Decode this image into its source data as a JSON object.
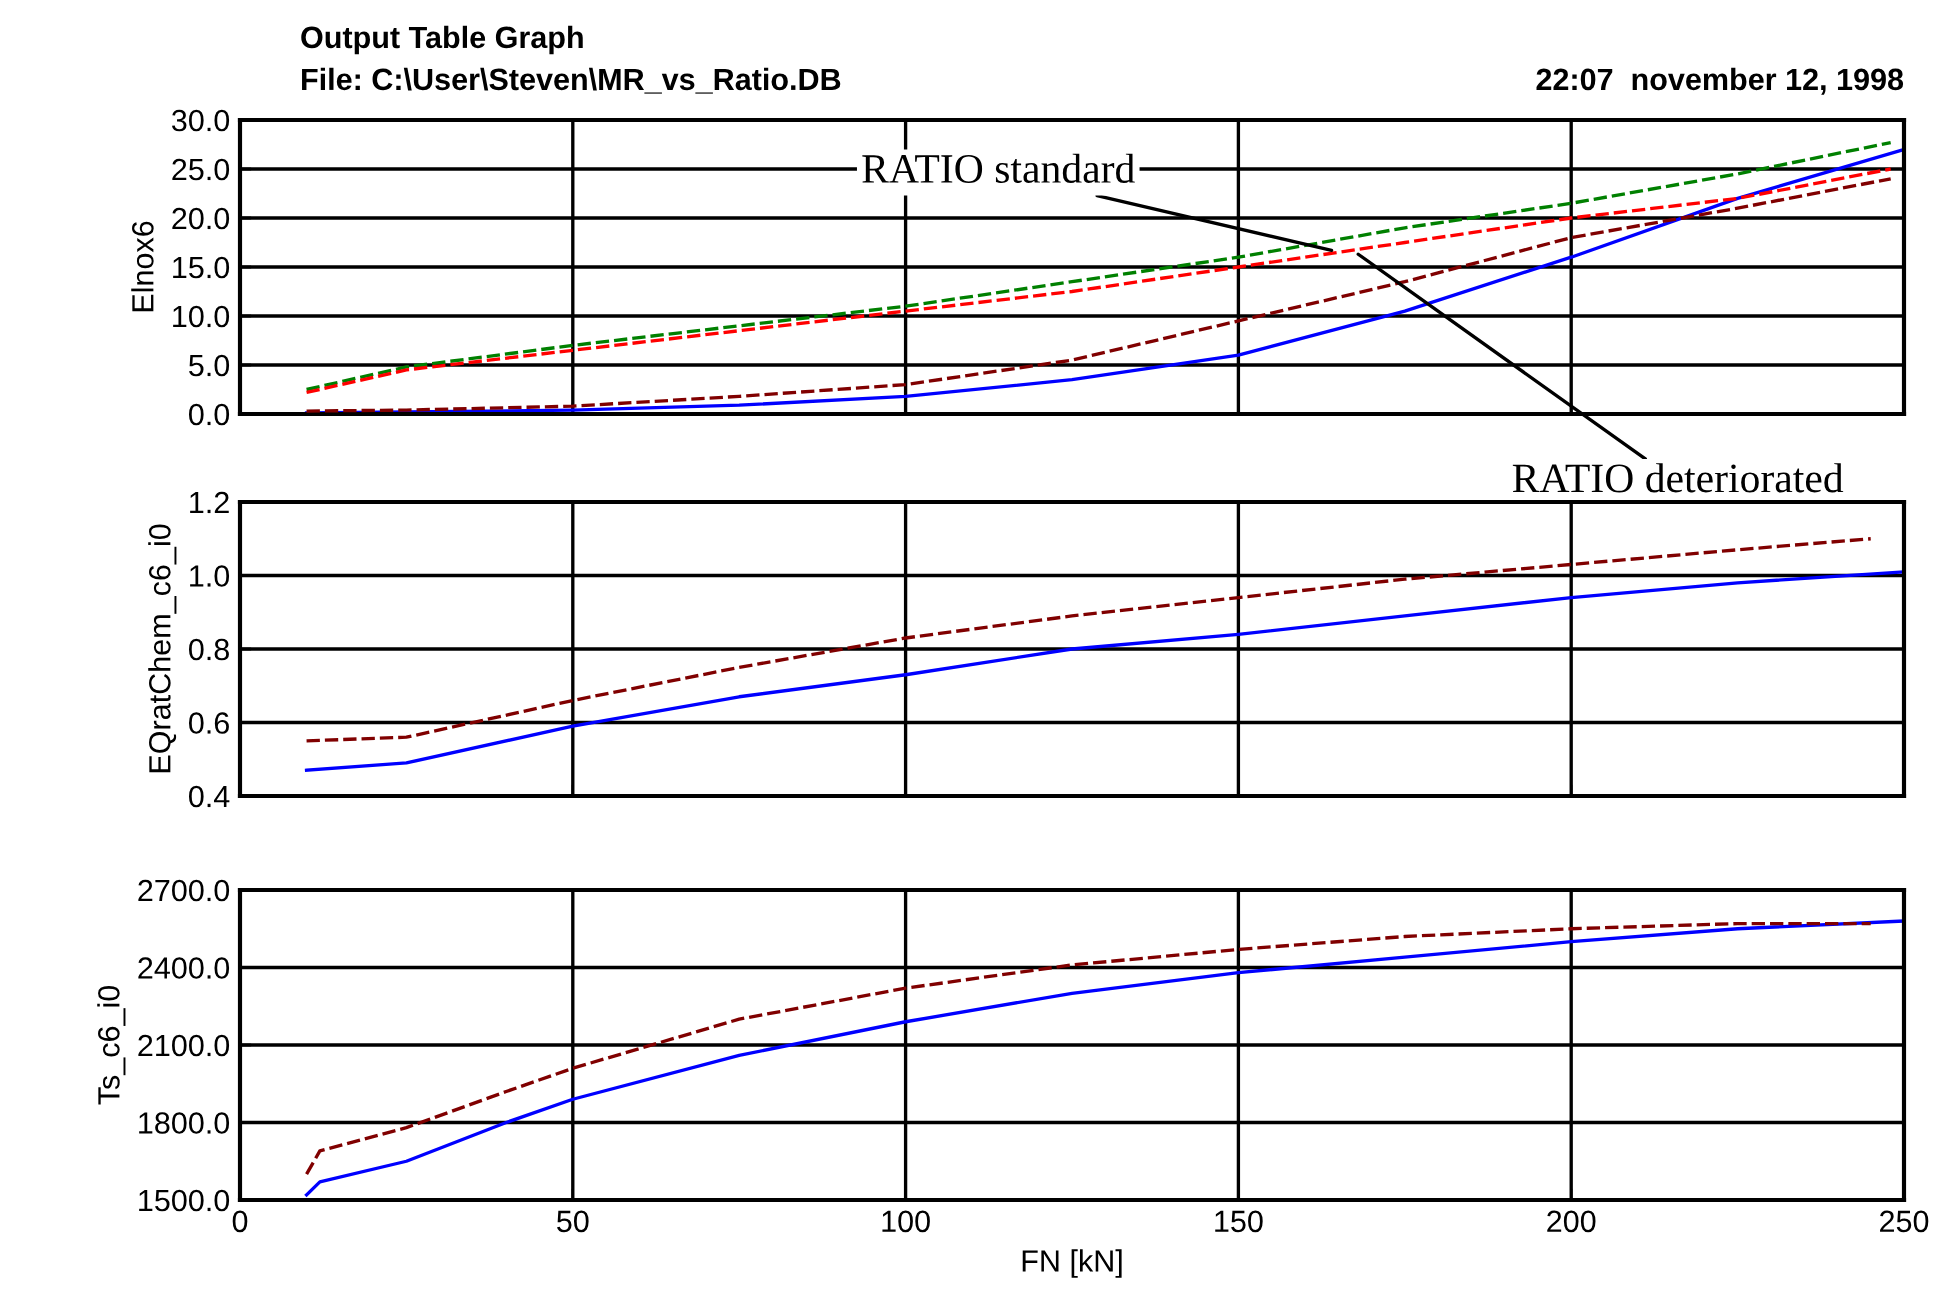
{
  "chart_data": [
    {
      "type": "line",
      "title": "Output Table Graph",
      "subtitle": "File: C:\\User\\Steven\\MR_vs_Ratio.DB",
      "ylabel": "Elnox6",
      "annotations": [
        "22:07  november 12, 1998",
        {
          "text": "RATIO standard",
          "x": 164,
          "y": 16.7
        },
        {
          "text": "RATIO deteriorated",
          "x": 168,
          "y": 16.3
        }
      ],
      "x": [
        10,
        25,
        50,
        75,
        100,
        125,
        150,
        175,
        200,
        225,
        248
      ],
      "series": [
        {
          "color": "#008000",
          "line_style": "dashed",
          "values": [
            2.5,
            4.8,
            7,
            9,
            11,
            13.5,
            16,
            19,
            21.5,
            24.5,
            27.7
          ]
        },
        {
          "color": "#ff0000",
          "line_style": "dashed",
          "values": [
            2.2,
            4.5,
            6.5,
            8.5,
            10.5,
            12.5,
            15,
            17.5,
            20,
            22,
            25
          ]
        },
        {
          "color": "#800000",
          "line_style": "dashed",
          "values": [
            0.3,
            0.4,
            0.8,
            1.8,
            3,
            5.5,
            9.5,
            13.5,
            18,
            21,
            24
          ]
        },
        {
          "color": "#0000ff",
          "line_style": "solid",
          "x": [
            10,
            25,
            50,
            75,
            100,
            125,
            150,
            175,
            200,
            225,
            250
          ],
          "values": [
            0.1,
            0.2,
            0.4,
            0.9,
            1.8,
            3.5,
            6,
            10.5,
            16,
            22,
            27
          ]
        }
      ],
      "xlim": [
        0,
        250
      ],
      "xticks": [
        0,
        50,
        100,
        150,
        200,
        250
      ],
      "ylim": [
        0,
        30
      ],
      "yticks": [
        {
          "value": 0,
          "label": "0.0"
        },
        {
          "value": 5,
          "label": "5.0"
        },
        {
          "value": 10,
          "label": "10.0"
        },
        {
          "value": 15,
          "label": "15.0"
        },
        {
          "value": 20,
          "label": "20.0"
        },
        {
          "value": 25,
          "label": "25.0"
        },
        {
          "value": 30,
          "label": "30.0"
        }
      ],
      "grid": true,
      "tick_labels": "y",
      "marker": "none"
    },
    {
      "type": "line",
      "ylabel": "EQratChem_c6_i0",
      "x": [
        10,
        25,
        50,
        75,
        100,
        125,
        150,
        175,
        200,
        225,
        245
      ],
      "series": [
        {
          "color": "#800000",
          "line_style": "dashed",
          "values": [
            0.55,
            0.56,
            0.66,
            0.75,
            0.83,
            0.89,
            0.94,
            0.99,
            1.03,
            1.07,
            1.1
          ]
        },
        {
          "color": "#0000ff",
          "line_style": "solid",
          "x": [
            10,
            25,
            50,
            75,
            100,
            125,
            150,
            175,
            200,
            225,
            250
          ],
          "values": [
            0.47,
            0.49,
            0.59,
            0.67,
            0.73,
            0.8,
            0.84,
            0.89,
            0.94,
            0.98,
            1.01
          ]
        }
      ],
      "xlim": [
        0,
        250
      ],
      "xticks": [
        0,
        50,
        100,
        150,
        200,
        250
      ],
      "ylim": [
        0.4,
        1.2
      ],
      "yticks": [
        {
          "value": 0.4,
          "label": "0.4"
        },
        {
          "value": 0.6,
          "label": "0.6"
        },
        {
          "value": 0.8,
          "label": "0.8"
        },
        {
          "value": 1.0,
          "label": "1.0"
        },
        {
          "value": 1.2,
          "label": "1.2"
        }
      ],
      "grid": true,
      "tick_labels": "y",
      "marker": "none"
    },
    {
      "type": "line",
      "ylabel": "Ts_c6_i0",
      "xlabel": "FN [kN]",
      "x": [
        10,
        12,
        25,
        40,
        50,
        75,
        100,
        125,
        150,
        175,
        200,
        225,
        245
      ],
      "series": [
        {
          "color": "#800000",
          "line_style": "dashed",
          "values": [
            1600,
            1690,
            1780,
            1920,
            2010,
            2200,
            2320,
            2410,
            2470,
            2520,
            2550,
            2570,
            2570
          ]
        },
        {
          "color": "#0000ff",
          "line_style": "solid",
          "x": [
            10,
            12,
            25,
            40,
            50,
            75,
            100,
            125,
            150,
            175,
            200,
            225,
            250
          ],
          "values": [
            1520,
            1570,
            1650,
            1800,
            1890,
            2060,
            2190,
            2300,
            2380,
            2440,
            2500,
            2550,
            2580
          ]
        }
      ],
      "xlim": [
        0,
        250
      ],
      "xticks": [
        0,
        50,
        100,
        150,
        200,
        250
      ],
      "ylim": [
        1500,
        2700
      ],
      "yticks": [
        {
          "value": 1500,
          "label": "1500.0"
        },
        {
          "value": 1800,
          "label": "1800.0"
        },
        {
          "value": 2100,
          "label": "2100.0"
        },
        {
          "value": 2400,
          "label": "2400.0"
        },
        {
          "value": 2700,
          "label": "2700.0"
        }
      ],
      "grid": true,
      "marker": "none"
    }
  ]
}
